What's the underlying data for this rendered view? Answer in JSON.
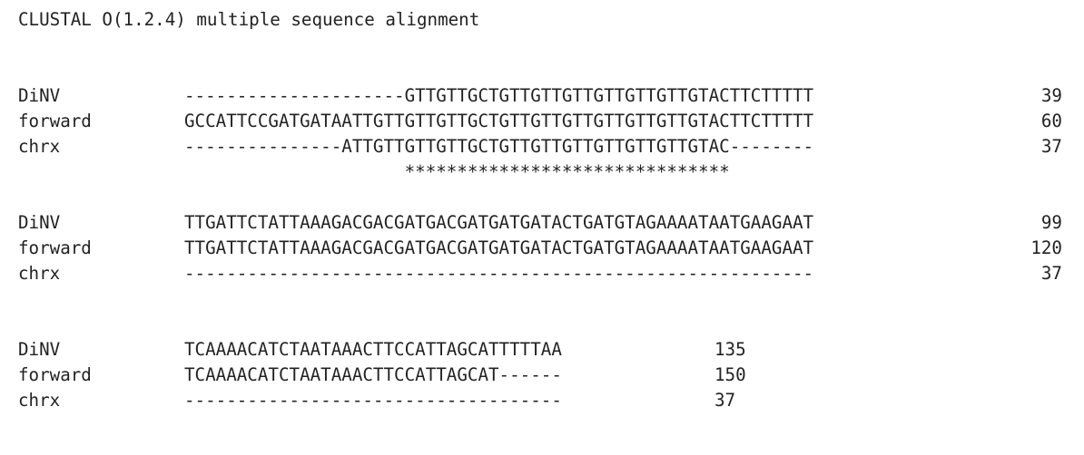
{
  "header": {
    "title": "CLUSTAL O(1.2.4) multiple sequence alignment"
  },
  "blocks": [
    {
      "rows": [
        {
          "name": "DiNV",
          "sequence": "---------------------GTTGTTGCTGTTGTTGTTGTTGTTGTTGTACTTCTTTTT",
          "count": "39"
        },
        {
          "name": "forward",
          "sequence": "GCCATTCCGATGATAATTGTTGTTGTTGCTGTTGTTGTTGTTGTTGTTGTACTTCTTTTT",
          "count": "60"
        },
        {
          "name": "chrx",
          "sequence": "---------------ATTGTTGTTGTTGCTGTTGTTGTTGTTGTTGTTGTAC--------",
          "count": "37"
        }
      ],
      "consensus": "                     *******************************"
    },
    {
      "rows": [
        {
          "name": "DiNV",
          "sequence": "TTGATTCTATTAAAGACGACGATGACGATGATGATACTGATGTAGAAAATAATGAAGAAT",
          "count": "99"
        },
        {
          "name": "forward",
          "sequence": "TTGATTCTATTAAAGACGACGATGACGATGATGATACTGATGTAGAAAATAATGAAGAAT",
          "count": "120"
        },
        {
          "name": "chrx",
          "sequence": "------------------------------------------------------------",
          "count": "37"
        }
      ],
      "consensus": ""
    },
    {
      "rows": [
        {
          "name": "DiNV",
          "sequence": "TCAAAACATCTAATAAACTTCCATTAGCATTTTTAA",
          "count": "135"
        },
        {
          "name": "forward",
          "sequence": "TCAAAACATCTAATAAACTTCCATTAGCAT------",
          "count": "150"
        },
        {
          "name": "chrx",
          "sequence": "------------------------------------",
          "count": "37"
        }
      ],
      "consensus": ""
    }
  ]
}
